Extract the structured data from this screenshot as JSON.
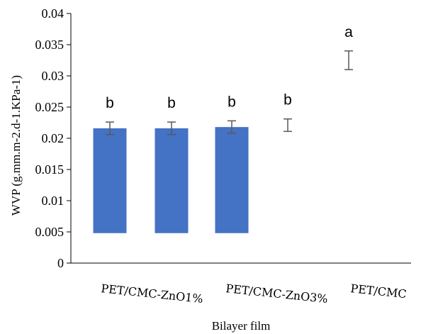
{
  "chart_data": {
    "type": "bar",
    "title": "",
    "xlabel": "Bilayer film",
    "ylabel": "WVP (g.mm.m-2.d-1.KPa-1)",
    "ylim": [
      0,
      0.04
    ],
    "yticks": [
      "0",
      "0.005",
      "0.01",
      "0.015",
      "0.02",
      "0.025",
      "0.03",
      "0.035",
      "0.04"
    ],
    "category_labels_shown": [
      "PET/CMC-ZnO1%",
      "PET/CMC-ZnO3%",
      "PET/CMC"
    ],
    "bars": [
      {
        "top": 0.0216,
        "base": 0.0048,
        "error": 0.001,
        "group": "b",
        "filled": true
      },
      {
        "top": 0.0216,
        "base": 0.0048,
        "error": 0.001,
        "group": "b",
        "filled": true
      },
      {
        "top": 0.0218,
        "base": 0.0048,
        "error": 0.001,
        "group": "b",
        "filled": true
      },
      {
        "top": 0.0221,
        "base": 0.0048,
        "error": 0.001,
        "group": "b",
        "filled": false
      },
      {
        "top": 0.0325,
        "base": 0.0048,
        "error": 0.0015,
        "group": "a",
        "filled": false
      }
    ],
    "grid": false,
    "colors": {
      "bar": "#4472C4",
      "error": "#595959",
      "axis": "#000000"
    }
  }
}
